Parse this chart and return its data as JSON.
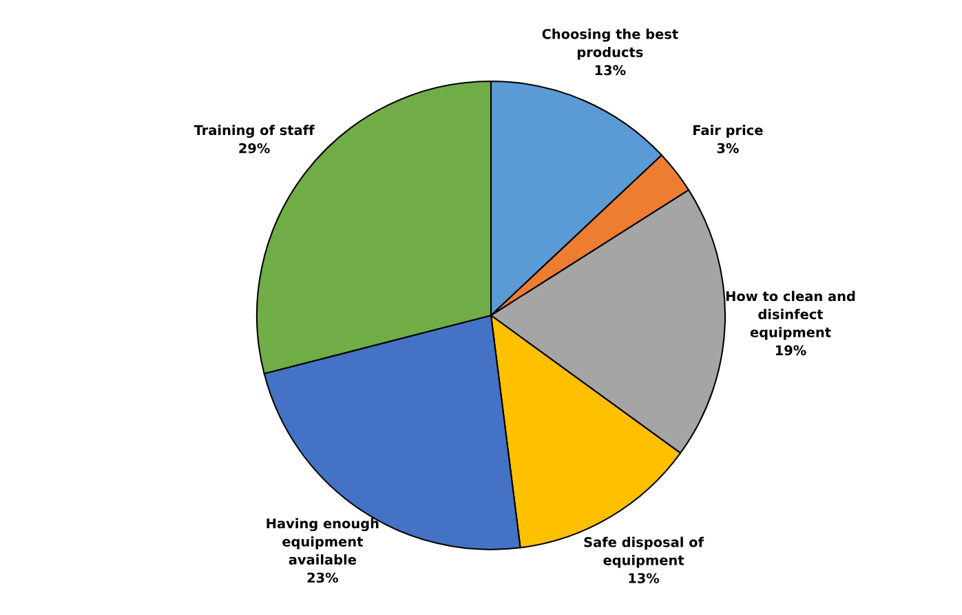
{
  "chart_data": {
    "type": "pie",
    "categories": [
      "Choosing the best\nproducts",
      "Fair price",
      "How to clean and\ndisinfect\nequipment",
      "Safe disposal of\nequipment",
      "Having enough\nequipment\navailable",
      "Training of staff"
    ],
    "values": [
      13,
      3,
      19,
      13,
      23,
      29
    ],
    "colors": [
      "#5b9bd5",
      "#ed7d31",
      "#a5a5a5",
      "#ffc000",
      "#4472c4",
      "#70ad47"
    ],
    "value_labels": [
      "13%",
      "3%",
      "19%",
      "13%",
      "23%",
      "29%"
    ]
  }
}
